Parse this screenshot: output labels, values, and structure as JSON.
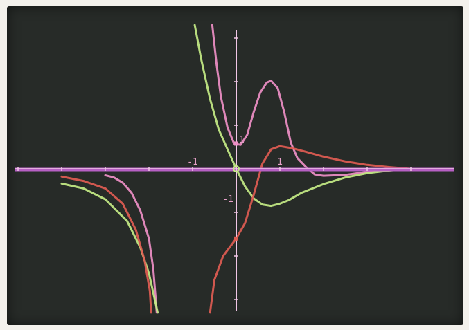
{
  "chart_data": {
    "type": "line",
    "title": "",
    "xlabel": "",
    "ylabel": "",
    "xlim": [
      -5,
      4.7
    ],
    "ylim": [
      -3.3,
      3.3
    ],
    "grid": false,
    "legend": "none",
    "tick_labels": {
      "x_neg": "-1",
      "x_pos": "1",
      "y_pos": "1",
      "y_neg": "-1"
    },
    "colors": {
      "background": "#272b28",
      "axes": "#f0c6e6",
      "x_axis_band": "#b760c4",
      "pink": "#ee8fc6",
      "green": "#c4ec86",
      "red": "#df5c52"
    },
    "series": [
      {
        "color": "pink",
        "points": [
          [
            -5,
            -0.06
          ],
          [
            -4,
            -0.08
          ],
          [
            -3,
            -0.15
          ],
          [
            -2.8,
            -0.2
          ],
          [
            -2.6,
            -0.32
          ],
          [
            -2.4,
            -0.55
          ],
          [
            -2.2,
            -0.95
          ],
          [
            -2.0,
            -1.6
          ],
          [
            -1.9,
            -2.3
          ],
          [
            -1.82,
            -3.3
          ],
          [
            -0.55,
            3.3
          ],
          [
            -0.45,
            2.4
          ],
          [
            -0.35,
            1.65
          ],
          [
            -0.2,
            0.95
          ],
          [
            -0.05,
            0.58
          ],
          [
            0.1,
            0.55
          ],
          [
            0.25,
            0.78
          ],
          [
            0.4,
            1.3
          ],
          [
            0.55,
            1.75
          ],
          [
            0.7,
            1.98
          ],
          [
            0.8,
            2.02
          ],
          [
            0.95,
            1.85
          ],
          [
            1.1,
            1.3
          ],
          [
            1.25,
            0.6
          ],
          [
            1.4,
            0.25
          ],
          [
            1.6,
            0.04
          ],
          [
            1.8,
            -0.13
          ],
          [
            2.0,
            -0.16
          ],
          [
            2.5,
            -0.14
          ],
          [
            3,
            -0.07
          ],
          [
            3.5,
            -0.03
          ],
          [
            4,
            0
          ]
        ]
      },
      {
        "color": "green",
        "points": [
          [
            -5,
            -0.25
          ],
          [
            -4,
            -0.34
          ],
          [
            -3.5,
            -0.45
          ],
          [
            -3,
            -0.7
          ],
          [
            -2.5,
            -1.2
          ],
          [
            -2.2,
            -1.8
          ],
          [
            -2.0,
            -2.4
          ],
          [
            -1.8,
            -3.3
          ],
          [
            -0.95,
            3.3
          ],
          [
            -0.8,
            2.5
          ],
          [
            -0.6,
            1.6
          ],
          [
            -0.4,
            0.9
          ],
          [
            -0.2,
            0.45
          ],
          [
            0,
            0
          ],
          [
            0.2,
            -0.4
          ],
          [
            0.4,
            -0.68
          ],
          [
            0.6,
            -0.82
          ],
          [
            0.8,
            -0.85
          ],
          [
            1.0,
            -0.8
          ],
          [
            1.2,
            -0.72
          ],
          [
            1.5,
            -0.55
          ],
          [
            2.0,
            -0.35
          ],
          [
            2.5,
            -0.2
          ],
          [
            3,
            -0.1
          ],
          [
            3.5,
            -0.04
          ],
          [
            4,
            0
          ]
        ]
      },
      {
        "color": "red",
        "points": [
          [
            -5,
            -0.12
          ],
          [
            -4,
            -0.18
          ],
          [
            -3.5,
            -0.28
          ],
          [
            -3,
            -0.45
          ],
          [
            -2.6,
            -0.8
          ],
          [
            -2.3,
            -1.4
          ],
          [
            -2.1,
            -2.1
          ],
          [
            -1.98,
            -2.8
          ],
          [
            -1.95,
            -3.3
          ],
          [
            -0.6,
            -3.3
          ],
          [
            -0.5,
            -2.55
          ],
          [
            -0.3,
            -2.0
          ],
          [
            0,
            -1.6
          ],
          [
            0.2,
            -1.25
          ],
          [
            0.4,
            -0.6
          ],
          [
            0.6,
            0.12
          ],
          [
            0.8,
            0.45
          ],
          [
            1.0,
            0.52
          ],
          [
            1.3,
            0.47
          ],
          [
            1.6,
            0.39
          ],
          [
            2.0,
            0.28
          ],
          [
            2.5,
            0.17
          ],
          [
            3,
            0.09
          ],
          [
            3.5,
            0.04
          ],
          [
            4,
            0
          ]
        ]
      }
    ]
  }
}
